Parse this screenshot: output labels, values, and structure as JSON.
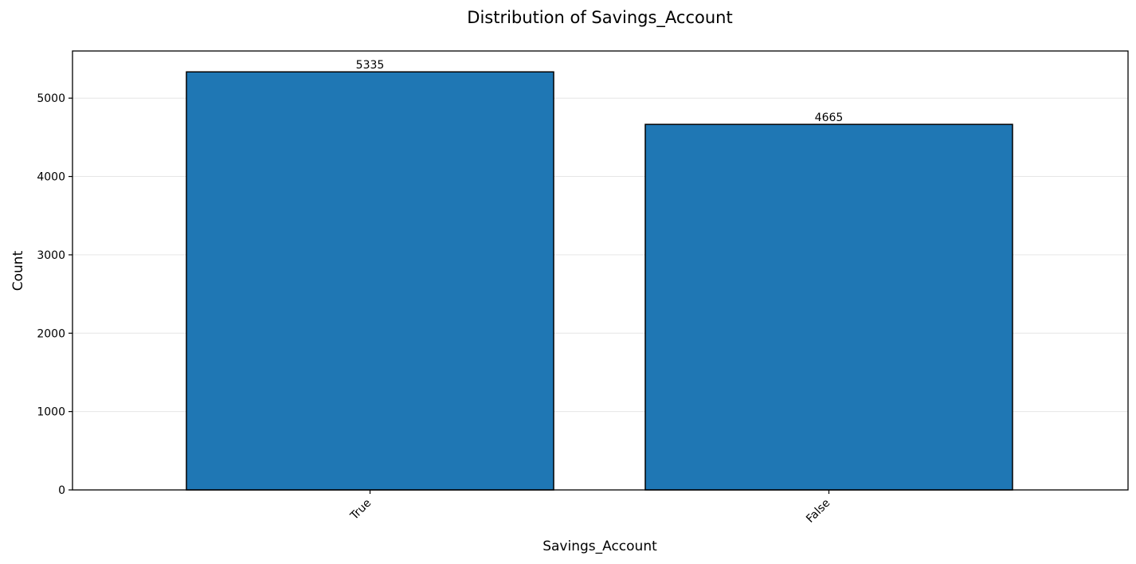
{
  "chart_data": {
    "type": "bar",
    "title": "Distribution of Savings_Account",
    "xlabel": "Savings_Account",
    "ylabel": "Count",
    "categories": [
      "True",
      "False"
    ],
    "values": [
      5335,
      4665
    ],
    "data_labels": [
      "5335",
      "4665"
    ],
    "ylim": [
      0,
      5601.75
    ],
    "yticks": [
      0,
      1000,
      2000,
      3000,
      4000,
      5000
    ],
    "ytick_labels": [
      "0",
      "1000",
      "2000",
      "3000",
      "4000",
      "5000"
    ],
    "grid": "y-axis horizontal, light",
    "legend": "none",
    "colors": {
      "bar_fill": "#1f77b4",
      "bar_edge": "#000000",
      "grid": "#e6e6e6",
      "axis": "#000000",
      "background": "#ffffff"
    }
  }
}
